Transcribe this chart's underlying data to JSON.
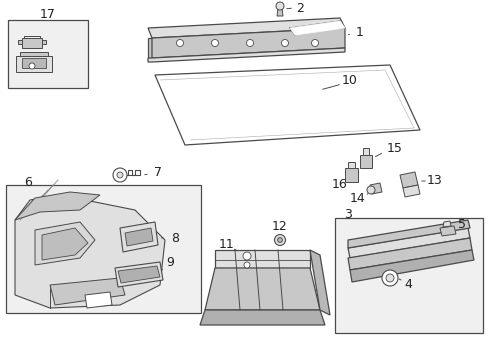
{
  "bg_color": "#ffffff",
  "lc": "#4a4a4a",
  "gray1": "#c8c8c8",
  "gray2": "#e0e0e0",
  "gray3": "#b0b0b0",
  "label_fs": 9,
  "small_fs": 8
}
